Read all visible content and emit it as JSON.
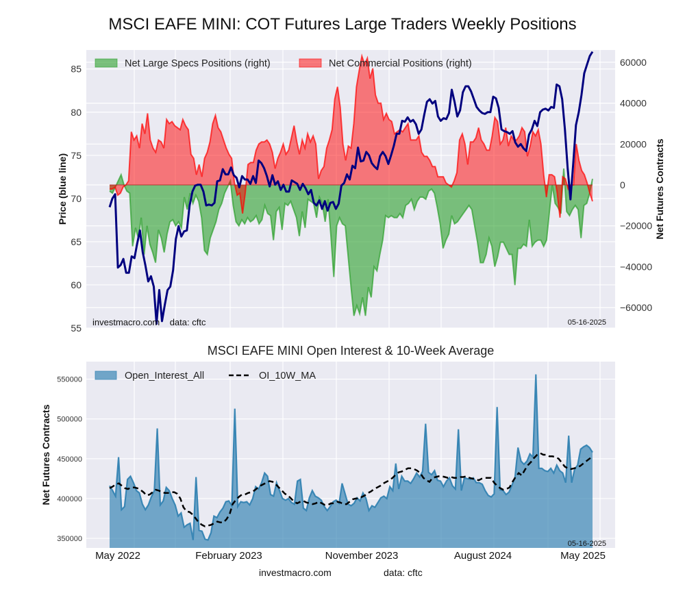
{
  "page": {
    "main_title": "MSCI EAFE MINI: COT Futures Large Traders Weekly Positions",
    "footer_site": "investmacro.com",
    "footer_data": "data: cftc"
  },
  "chart_data": [
    {
      "type": "area",
      "title": "MSCI EAFE MINI: COT Futures Large Traders Weekly Positions",
      "ylabel": "Price (blue line)",
      "y2label": "Net Futures Contracts",
      "ylim": [
        55,
        87.2
      ],
      "y2lim": [
        -70000,
        66000
      ],
      "yticks": [
        "55",
        "60",
        "65",
        "70",
        "75",
        "80",
        "85"
      ],
      "y2ticks": [
        "−60000",
        "−40000",
        "−20000",
        "0",
        "20000",
        "40000",
        "60000"
      ],
      "grid": true,
      "legend": "top-left",
      "annotation_left": "investmacro.com    data: cftc",
      "annotation_right": "05-16-2025",
      "series": [
        {
          "name": "Net Large Specs Positions (right)",
          "kind": "area",
          "color": "#2ca02c",
          "values": [
            -3000,
            -4000,
            -1000,
            2000,
            5000,
            0,
            -3000,
            -4000,
            -30000,
            -21000,
            -26000,
            -16000,
            -34000,
            -20000,
            -29000,
            -33000,
            -38000,
            -22000,
            -26000,
            -33000,
            -24000,
            -18000,
            -17000,
            -20000,
            -18000,
            -21000,
            -6000,
            -12000,
            -4000,
            -9000,
            -5000,
            -8000,
            -16000,
            -32000,
            -34000,
            -26000,
            -22000,
            -18000,
            -12000,
            -9000,
            -4000,
            -1000,
            2000,
            -10000,
            -18000,
            -20000,
            -17000,
            -19000,
            -16000,
            -18000,
            -17000,
            -15000,
            -19000,
            -17000,
            -10000,
            -14000,
            -15000,
            -27000,
            -13000,
            -11000,
            -22000,
            -9000,
            -10000,
            -8000,
            -12000,
            -16000,
            -25000,
            -13000,
            -21000,
            -7000,
            -8000,
            -9000,
            -16000,
            -6000,
            -9000,
            -18000,
            -7000,
            -25000,
            -45000,
            -20000,
            -16000,
            -19000,
            -20000,
            -35000,
            -50000,
            -64000,
            -59000,
            -63000,
            -55000,
            -64000,
            -50000,
            -55000,
            -40000,
            -42000,
            -34000,
            -27000,
            -15000,
            -16000,
            -15000,
            -16000,
            -16000,
            -14000,
            -16000,
            -10000,
            -9000,
            -7000,
            -12000,
            -8000,
            -6000,
            -6000,
            -7000,
            -3000,
            -2000,
            -4000,
            -11000,
            -19000,
            -31000,
            -27000,
            -24000,
            -15000,
            -19000,
            -18000,
            -16000,
            -14000,
            -12000,
            -10000,
            -12000,
            -20000,
            -28000,
            -38000,
            -38000,
            -34000,
            -26000,
            -30000,
            -40000,
            -35000,
            -28000,
            -28000,
            -31000,
            -34000,
            -34000,
            -49000,
            -31000,
            -31000,
            -29000,
            -30000,
            -17000,
            -30000,
            -28000,
            -27000,
            -27000,
            -30000,
            -27000,
            -13000,
            0,
            -9000,
            -11000,
            -14000,
            8000,
            -13000,
            -15000,
            -12000,
            -10000,
            -12000,
            -26000,
            -10000,
            -9000,
            -4000,
            3000
          ]
        },
        {
          "name": "Net Commercial Positions (right)",
          "kind": "area",
          "color": "#ff0000",
          "values": [
            -2000,
            -2000,
            -1000,
            -5000,
            -4000,
            -1000,
            0,
            2000,
            26000,
            22000,
            24000,
            18000,
            30000,
            25000,
            35000,
            22000,
            18000,
            16000,
            22000,
            21000,
            18000,
            32000,
            30000,
            31000,
            29000,
            28000,
            27000,
            32000,
            29000,
            27000,
            15000,
            13000,
            5000,
            10000,
            4000,
            13000,
            16000,
            21000,
            30000,
            34000,
            28000,
            26000,
            22000,
            18000,
            15000,
            13000,
            1000,
            -5000,
            -4000,
            -14000,
            -4000,
            10000,
            11000,
            11000,
            17000,
            20000,
            21000,
            21000,
            22000,
            20000,
            16000,
            8000,
            13000,
            16000,
            20000,
            15000,
            17000,
            23000,
            29000,
            21000,
            15000,
            22000,
            18000,
            25000,
            21000,
            24000,
            20000,
            3000,
            7000,
            9000,
            18000,
            22000,
            27000,
            42000,
            48000,
            38000,
            20000,
            12000,
            19000,
            18000,
            30000,
            48000,
            56000,
            63000,
            59000,
            62000,
            52000,
            57000,
            44000,
            40000,
            40000,
            32000,
            35000,
            32000,
            31000,
            25000,
            26000,
            27000,
            26000,
            28000,
            30000,
            22000,
            22000,
            22000,
            24000,
            16000,
            14000,
            14000,
            12000,
            9000,
            9000,
            4000,
            4000,
            4000,
            1000,
            0,
            -1000,
            2000,
            6000,
            22000,
            25000,
            20000,
            10000,
            21000,
            21000,
            23000,
            28000,
            22000,
            20000,
            17000,
            17000,
            24000,
            33000,
            31000,
            20000,
            22000,
            28000,
            19000,
            24000,
            22000,
            22000,
            24000,
            28000,
            26000,
            14000,
            19000,
            26000,
            24000,
            27000,
            20000,
            5000,
            -6000,
            5000,
            5000,
            4000,
            -4000,
            -16000,
            4000,
            3000,
            -2000,
            0,
            0,
            20000,
            12000,
            7000,
            5000,
            1000,
            -4000,
            -8000
          ]
        },
        {
          "name": "Price",
          "kind": "line",
          "axis": "left",
          "color": "#00007f",
          "values": [
            69.0,
            70.0,
            70.5,
            62.0,
            62.3,
            63.0,
            61.4,
            61.4,
            63.3,
            63.1,
            64.8,
            66.3,
            63.8,
            62.2,
            60.4,
            61.0,
            59.8,
            55.5,
            59.4,
            55.8,
            57.7,
            59.4,
            59.8,
            61.7,
            65.3,
            66.8,
            65.6,
            66.2,
            66.3,
            69.2,
            70.8,
            71.5,
            71.6,
            71.6,
            70.8,
            69.2,
            69.3,
            69.2,
            69.5,
            72.0,
            72.1,
            73.4,
            72.8,
            72.8,
            73.6,
            72.7,
            72.4,
            71.3,
            72.6,
            72.2,
            72.2,
            71.7,
            72.6,
            71.8,
            74.4,
            74.1,
            73.5,
            72.6,
            71.4,
            72.7,
            71.6,
            72.0,
            71.0,
            71.6,
            70.8,
            70.8,
            72.1,
            71.9,
            71.7,
            71.0,
            71.7,
            71.2,
            70.5,
            71.0,
            69.5,
            69.2,
            69.8,
            68.8,
            69.7,
            68.6,
            69.5,
            69.6,
            68.8,
            69.4,
            71.5,
            71.8,
            72.8,
            72.2,
            73.8,
            73.5,
            75.9,
            74.3,
            74.4,
            75.4,
            75.0,
            74.1,
            73.7,
            73.4,
            74.9,
            75.4,
            74.9,
            74.0,
            75.0,
            76.1,
            77.5,
            77.5,
            79.0,
            78.9,
            79.4,
            78.9,
            79.1,
            78.6,
            77.5,
            78.0,
            79.7,
            81.2,
            81.5,
            81.0,
            81.3,
            79.5,
            79.0,
            79.3,
            79.2,
            79.9,
            82.6,
            81.2,
            79.5,
            80.2,
            82.3,
            83.0,
            83.0,
            82.4,
            81.5,
            80.6,
            80.2,
            79.9,
            79.8,
            80.0,
            80.0,
            81.8,
            81.6,
            80.5,
            78.0,
            77.8,
            77.7,
            77.5,
            77.8,
            76.5,
            76.0,
            76.3,
            75.8,
            75.5,
            77.4,
            78.0,
            79.0,
            78.4,
            80.0,
            80.3,
            80.4,
            80.2,
            80.6,
            80.5,
            83.2,
            83.0,
            81.5,
            78.0,
            73.5,
            69.9,
            74.0,
            78.5,
            80.0,
            82.0,
            84.5,
            85.5,
            86.5,
            87.0
          ]
        }
      ]
    },
    {
      "type": "area",
      "title": "MSCI EAFE MINI Open Interest & 10-Week Average",
      "ylabel": "Net Futures Contracts",
      "ylim": [
        338000,
        572000
      ],
      "yticks": [
        "350000",
        "400000",
        "450000",
        "500000",
        "550000"
      ],
      "xticks": [
        "May 2022",
        "February 2023",
        "November 2023",
        "August 2024",
        "May 2025"
      ],
      "grid": true,
      "legend": "top-left",
      "annotation_right": "05-16-2025",
      "series": [
        {
          "name": "Open_Interest_All",
          "kind": "area",
          "color": "#2e7fb0",
          "values": [
            416000,
            410000,
            403000,
            452000,
            386000,
            390000,
            424000,
            428000,
            420000,
            410000,
            407000,
            393000,
            386000,
            392000,
            402000,
            410000,
            488000,
            392000,
            397000,
            414000,
            410000,
            400000,
            392000,
            378000,
            382000,
            364000,
            367000,
            369000,
            348000,
            427000,
            360000,
            359000,
            349000,
            348000,
            357000,
            378000,
            376000,
            383000,
            388000,
            396000,
            397000,
            391000,
            513000,
            390000,
            396000,
            395000,
            396000,
            392000,
            400000,
            415000,
            412000,
            420000,
            432000,
            428000,
            405000,
            403000,
            420000,
            410000,
            400000,
            398000,
            400000,
            395000,
            393000,
            422000,
            424000,
            388000,
            385000,
            401000,
            410000,
            403000,
            401000,
            398000,
            390000,
            385000,
            390000,
            396000,
            398000,
            394000,
            419000,
            406000,
            393000,
            391000,
            394000,
            401000,
            397000,
            407000,
            400000,
            385000,
            391000,
            389000,
            395000,
            401000,
            403000,
            400000,
            415000,
            410000,
            444000,
            412000,
            428000,
            422000,
            422000,
            419000,
            425000,
            432000,
            427000,
            434000,
            494000,
            433000,
            430000,
            435000,
            423000,
            422000,
            415000,
            422000,
            426000,
            416000,
            412000,
            487000,
            410000,
            426000,
            425000,
            424000,
            426000,
            420000,
            420000,
            418000,
            410000,
            404000,
            402000,
            406000,
            515000,
            411000,
            410000,
            405000,
            408000,
            417000,
            427000,
            464000,
            447000,
            443000,
            447000,
            456000,
            452000,
            556000,
            438000,
            438000,
            435000,
            434000,
            438000,
            432000,
            442000,
            435000,
            432000,
            420000,
            479000,
            420000,
            437000,
            442000,
            462000,
            465000,
            467000,
            464000,
            458000
          ],
          "values_note": "weekly open interest"
        },
        {
          "name": "OI_10W_MA",
          "kind": "line",
          "style": "dashed",
          "color": "#000000",
          "values": [
            413000,
            415000,
            418000,
            419000,
            416000,
            413000,
            412000,
            414000,
            414000,
            413000,
            411000,
            408000,
            404000,
            405000,
            408000,
            411000,
            410000,
            408000,
            407000,
            407000,
            408000,
            408000,
            406000,
            400000,
            389000,
            384000,
            383000,
            380000,
            375000,
            370000,
            367000,
            365000,
            366000,
            367000,
            369000,
            371000,
            370000,
            370000,
            374000,
            380000,
            393000,
            398000,
            402000,
            405000,
            405000,
            407000,
            408000,
            410000,
            413000,
            416000,
            418000,
            420000,
            422000,
            421000,
            418000,
            414000,
            410000,
            406000,
            404000,
            400000,
            396000,
            394000,
            396000,
            397000,
            395000,
            394000,
            393000,
            394000,
            396000,
            394000,
            392000,
            392000,
            394000,
            394000,
            396000,
            395000,
            393000,
            393000,
            396000,
            399000,
            400000,
            400000,
            402000,
            404000,
            407000,
            409000,
            412000,
            414000,
            416000,
            419000,
            421000,
            423000,
            426000,
            430000,
            433000,
            434000,
            436000,
            438000,
            438000,
            437000,
            435000,
            432000,
            426000,
            423000,
            421000,
            426000,
            427000,
            428000,
            428000,
            427000,
            426000,
            427000,
            426000,
            426000,
            427000,
            427000,
            428000,
            426000,
            425000,
            424000,
            423000,
            425000,
            426000,
            426000,
            426000,
            420000,
            416000,
            413000,
            411000,
            412000,
            414000,
            421000,
            427000,
            432000,
            429000,
            436000,
            442000,
            446000,
            451000,
            455000,
            457000,
            455000,
            455000,
            453000,
            453000,
            452000,
            450000,
            445000,
            440000,
            438000,
            437000,
            438000,
            439000,
            441000,
            444000,
            447000,
            450000,
            453000
          ]
        }
      ]
    }
  ]
}
